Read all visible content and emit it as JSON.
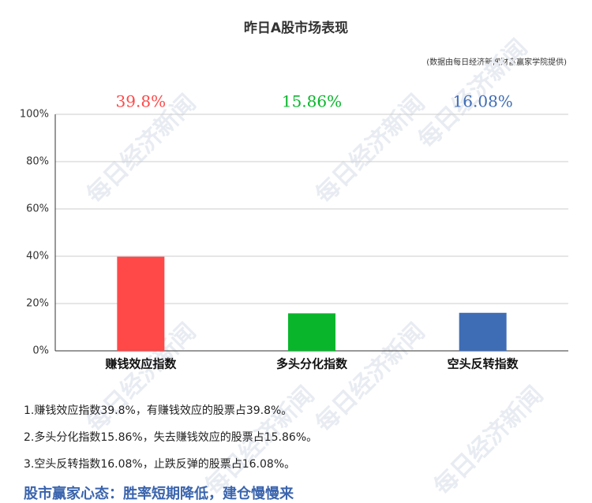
{
  "chart_data": {
    "type": "bar",
    "title": "昨日A股市场表现",
    "subtitle": "(数据由每日经济新闻财富赢家学院提供)",
    "watermark": "每日经济新闻",
    "categories": [
      "赚钱效应指数",
      "多头分化指数",
      "空头反转指数"
    ],
    "values": [
      39.8,
      15.86,
      16.08
    ],
    "value_labels": [
      "39.8%",
      "15.86%",
      "16.08%"
    ],
    "colors": [
      "#ff4848",
      "#09b62b",
      "#3f6db5"
    ],
    "ylim": [
      0,
      100
    ],
    "yticks": [
      {
        "value": 0,
        "label": "0%"
      },
      {
        "value": 20,
        "label": "20%"
      },
      {
        "value": 40,
        "label": "40%"
      },
      {
        "value": 60,
        "label": "60%"
      },
      {
        "value": 80,
        "label": "80%"
      },
      {
        "value": 100,
        "label": "100%"
      }
    ],
    "grid": true,
    "notes": [
      "1.赚钱效应指数39.8%，有赚钱效应的股票占39.8%。",
      "2.多头分化指数15.86%，失去赚钱效应的股票占15.86%。",
      "3.空头反转指数16.08%，止跌反弹的股票占16.08%。"
    ],
    "slogan": "股市赢家心态：胜率短期降低，建仓慢慢来"
  }
}
